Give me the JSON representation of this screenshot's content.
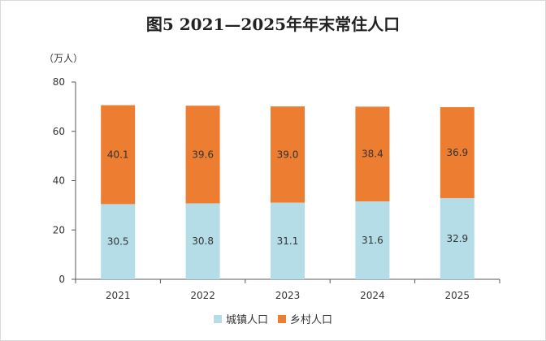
{
  "title": "图5   2021—2025年年末常住人口",
  "unit": "（万人）",
  "colors": {
    "urban": "#b4dde8",
    "rural": "#ed7d31",
    "axis": "#595959"
  },
  "chart_data": {
    "type": "bar",
    "stacked": true,
    "title": "图5   2021—2025年年末常住人口",
    "ylabel": "（万人）",
    "categories": [
      "2021",
      "2022",
      "2023",
      "2024",
      "2025"
    ],
    "series": [
      {
        "name": "城镇人口",
        "values": [
          30.5,
          30.8,
          31.1,
          31.6,
          32.9
        ]
      },
      {
        "name": "乡村人口",
        "values": [
          40.1,
          39.6,
          39.0,
          38.4,
          36.9
        ]
      }
    ],
    "ylim": [
      0,
      80
    ],
    "yticks": [
      0,
      20,
      40,
      60,
      80
    ],
    "grid": false,
    "legend": "bottom"
  }
}
